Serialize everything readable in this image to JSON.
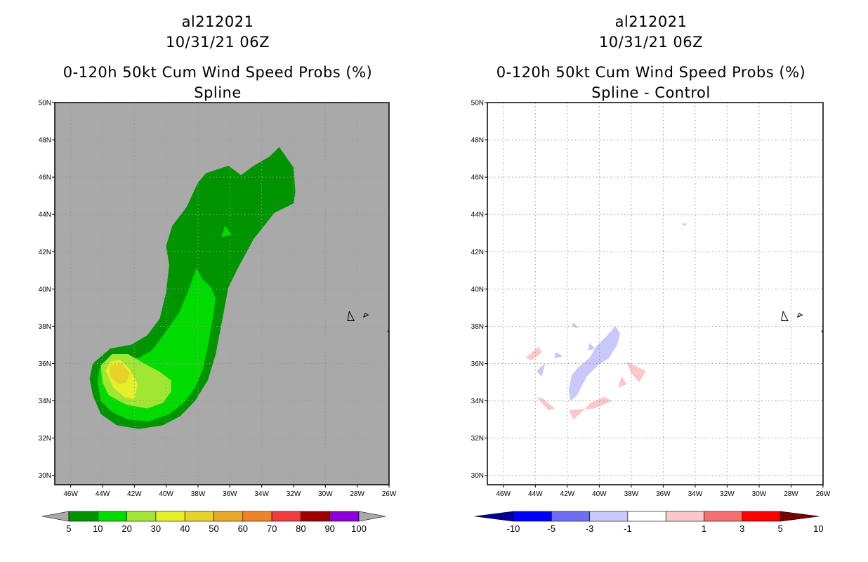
{
  "chart_data": [
    {
      "type": "heatmap",
      "storm": "al212021",
      "date": "10/31/21 06Z",
      "title": "0-120h 50kt Cum Wind Speed Probs (%)",
      "subtitle": "Spline",
      "xlim": [
        -47,
        -26
      ],
      "ylim": [
        29.5,
        50
      ],
      "x_ticks": [
        -46,
        -44,
        -42,
        -40,
        -38,
        -36,
        -34,
        -32,
        -30,
        -28,
        -26
      ],
      "x_tick_labels": [
        "46W",
        "44W",
        "42W",
        "40W",
        "38W",
        "36W",
        "34W",
        "32W",
        "30W",
        "28W",
        "26W"
      ],
      "y_ticks": [
        30,
        32,
        34,
        36,
        38,
        40,
        42,
        44,
        46,
        48,
        50
      ],
      "y_tick_labels": [
        "30N",
        "32N",
        "34N",
        "36N",
        "38N",
        "40N",
        "42N",
        "44N",
        "46N",
        "48N",
        "50N"
      ],
      "background": "#a9a9a9",
      "grid": true,
      "colorbar": {
        "labels": [
          "5",
          "10",
          "20",
          "30",
          "40",
          "50",
          "60",
          "70",
          "80",
          "90",
          "100"
        ],
        "colors": [
          "#009400",
          "#00dc00",
          "#a0e632",
          "#e6f028",
          "#e6d228",
          "#e6aa28",
          "#f08228",
          "#f03c3c",
          "#a00000",
          "#8c00dc"
        ],
        "end_color": "#a9a9a9"
      },
      "contours": [
        {
          "level": 5,
          "color": "#009400",
          "polygon": [
            [
              -32.0,
              46.5
            ],
            [
              -31.9,
              45.2
            ],
            [
              -32.0,
              44.6
            ],
            [
              -33.2,
              44.1
            ],
            [
              -34.5,
              42.7
            ],
            [
              -35.4,
              41.3
            ],
            [
              -36.1,
              40.1
            ],
            [
              -36.5,
              38.3
            ],
            [
              -36.9,
              36.5
            ],
            [
              -37.4,
              35.1
            ],
            [
              -38.2,
              34.0
            ],
            [
              -39.1,
              33.2
            ],
            [
              -40.2,
              32.7
            ],
            [
              -41.7,
              32.5
            ],
            [
              -43.1,
              32.7
            ],
            [
              -44.1,
              33.3
            ],
            [
              -44.6,
              34.3
            ],
            [
              -44.8,
              35.2
            ],
            [
              -44.6,
              36.0
            ],
            [
              -43.5,
              36.8
            ],
            [
              -42.2,
              37.0
            ],
            [
              -41.2,
              37.5
            ],
            [
              -40.4,
              38.4
            ],
            [
              -40.0,
              39.8
            ],
            [
              -39.8,
              41.3
            ],
            [
              -40.0,
              42.3
            ],
            [
              -39.6,
              43.4
            ],
            [
              -38.7,
              44.4
            ],
            [
              -38.0,
              45.7
            ],
            [
              -37.5,
              46.2
            ],
            [
              -36.1,
              46.6
            ],
            [
              -35.3,
              46.1
            ],
            [
              -34.5,
              46.6
            ],
            [
              -33.5,
              47.1
            ],
            [
              -32.9,
              47.6
            ],
            [
              -32.0,
              46.5
            ]
          ]
        },
        {
          "level": 10,
          "color": "#00dc00",
          "polygon": [
            [
              -38.1,
              41.1
            ],
            [
              -37.7,
              40.5
            ],
            [
              -37.2,
              40.1
            ],
            [
              -36.9,
              39.5
            ],
            [
              -37.1,
              38.3
            ],
            [
              -37.4,
              36.9
            ],
            [
              -37.7,
              35.7
            ],
            [
              -38.2,
              34.7
            ],
            [
              -38.9,
              33.9
            ],
            [
              -39.8,
              33.3
            ],
            [
              -41.1,
              32.9
            ],
            [
              -42.4,
              33.0
            ],
            [
              -43.4,
              33.4
            ],
            [
              -44.1,
              34.0
            ],
            [
              -44.3,
              35.0
            ],
            [
              -44.2,
              35.7
            ],
            [
              -43.6,
              36.2
            ],
            [
              -42.7,
              36.3
            ],
            [
              -41.7,
              36.3
            ],
            [
              -40.9,
              36.7
            ],
            [
              -40.1,
              37.6
            ],
            [
              -39.2,
              38.7
            ],
            [
              -38.6,
              39.9
            ],
            [
              -38.1,
              41.1
            ]
          ]
        },
        {
          "level": 10,
          "color": "#00dc00",
          "polygon": [
            [
              -36.3,
              43.4
            ],
            [
              -35.9,
              42.9
            ],
            [
              -36.5,
              42.8
            ],
            [
              -36.3,
              43.4
            ]
          ]
        },
        {
          "level": 20,
          "color": "#a0e632",
          "polygon": [
            [
              -39.7,
              35.1
            ],
            [
              -40.5,
              35.6
            ],
            [
              -41.4,
              36.0
            ],
            [
              -42.4,
              36.5
            ],
            [
              -43.4,
              36.5
            ],
            [
              -44.1,
              35.9
            ],
            [
              -44.0,
              35.0
            ],
            [
              -43.6,
              34.3
            ],
            [
              -42.5,
              33.8
            ],
            [
              -41.2,
              33.6
            ],
            [
              -40.2,
              33.9
            ],
            [
              -39.7,
              34.5
            ],
            [
              -39.7,
              35.1
            ]
          ]
        },
        {
          "level": 30,
          "color": "#e6f028",
          "polygon": [
            [
              -41.8,
              34.9
            ],
            [
              -42.3,
              35.7
            ],
            [
              -42.9,
              36.2
            ],
            [
              -43.5,
              36.1
            ],
            [
              -43.8,
              35.6
            ],
            [
              -43.3,
              34.7
            ],
            [
              -42.6,
              34.2
            ],
            [
              -42.0,
              34.1
            ],
            [
              -41.8,
              34.9
            ]
          ]
        },
        {
          "level": 40,
          "color": "#e6d228",
          "polygon": [
            [
              -42.3,
              35.5
            ],
            [
              -42.8,
              36.0
            ],
            [
              -43.5,
              35.9
            ],
            [
              -43.5,
              35.3
            ],
            [
              -43.0,
              34.9
            ],
            [
              -42.5,
              35.0
            ],
            [
              -42.3,
              35.5
            ]
          ]
        }
      ],
      "coast": [
        [
          [
            -28.5,
            38.8
          ],
          [
            -28.6,
            38.3
          ],
          [
            -28.2,
            38.3
          ],
          [
            -28.5,
            38.8
          ]
        ],
        [
          [
            -27.5,
            38.7
          ],
          [
            -27.6,
            38.5
          ],
          [
            -27.3,
            38.6
          ],
          [
            -27.5,
            38.7
          ]
        ],
        [
          [
            -25.9,
            37.9
          ],
          [
            -26.1,
            37.7
          ],
          [
            -25.9,
            37.8
          ]
        ]
      ]
    },
    {
      "type": "heatmap",
      "storm": "al212021",
      "date": "10/31/21 06Z",
      "title": "0-120h 50kt Cum Wind Speed Probs (%)",
      "subtitle": "Spline - Control",
      "xlim": [
        -47,
        -26
      ],
      "ylim": [
        29.5,
        50
      ],
      "x_ticks": [
        -46,
        -44,
        -42,
        -40,
        -38,
        -36,
        -34,
        -32,
        -30,
        -28,
        -26
      ],
      "x_tick_labels": [
        "46W",
        "44W",
        "42W",
        "40W",
        "38W",
        "36W",
        "34W",
        "32W",
        "30W",
        "28W",
        "26W"
      ],
      "y_ticks": [
        30,
        32,
        34,
        36,
        38,
        40,
        42,
        44,
        46,
        48,
        50
      ],
      "y_tick_labels": [
        "30N",
        "32N",
        "34N",
        "36N",
        "38N",
        "40N",
        "42N",
        "44N",
        "46N",
        "48N",
        "50N"
      ],
      "background": "#ffffff",
      "grid": true,
      "colorbar": {
        "labels": [
          "-10",
          "-5",
          "-3",
          "-1",
          "1",
          "3",
          "5",
          "10"
        ],
        "colors": [
          "#0000ff",
          "#6e6ef5",
          "#c8c8fa",
          "#ffffff",
          "#fac8c8",
          "#f56e6e",
          "#ff0000"
        ],
        "start_color": "#000096",
        "end_color": "#780000"
      },
      "contours": [
        {
          "level": -3,
          "color": "#c8c8fa",
          "polygon": [
            [
              -38.7,
              37.6
            ],
            [
              -38.9,
              37.0
            ],
            [
              -39.4,
              36.3
            ],
            [
              -40.1,
              35.9
            ],
            [
              -40.8,
              35.3
            ],
            [
              -41.4,
              34.3
            ],
            [
              -41.8,
              34.0
            ],
            [
              -41.9,
              34.6
            ],
            [
              -41.7,
              35.4
            ],
            [
              -41.3,
              35.8
            ],
            [
              -40.6,
              36.3
            ],
            [
              -40.2,
              36.9
            ],
            [
              -39.5,
              37.5
            ],
            [
              -39.0,
              38.0
            ],
            [
              -38.7,
              37.6
            ]
          ]
        },
        {
          "level": -3,
          "color": "#c8c8fa",
          "polygon": [
            [
              -40.6,
              37.1
            ],
            [
              -40.3,
              36.8
            ],
            [
              -40.7,
              36.7
            ],
            [
              -40.6,
              37.1
            ]
          ]
        },
        {
          "level": -3,
          "color": "#c8c8fa",
          "polygon": [
            [
              -42.7,
              36.6
            ],
            [
              -42.3,
              36.4
            ],
            [
              -42.8,
              36.3
            ],
            [
              -42.7,
              36.6
            ]
          ]
        },
        {
          "level": -3,
          "color": "#c8c8fa",
          "polygon": [
            [
              -43.4,
              36.0
            ],
            [
              -43.6,
              35.3
            ],
            [
              -43.9,
              35.6
            ],
            [
              -43.4,
              36.0
            ]
          ]
        },
        {
          "level": -3,
          "color": "#c8c8fa",
          "polygon": [
            [
              -41.6,
              38.2
            ],
            [
              -41.3,
              37.9
            ],
            [
              -41.7,
              38.0
            ],
            [
              -41.6,
              38.2
            ]
          ]
        },
        {
          "level": -3,
          "color": "#c8c8fa",
          "polygon": [
            [
              -34.8,
              43.5
            ],
            [
              -34.5,
              43.5
            ],
            [
              -34.7,
              43.4
            ],
            [
              -34.8,
              43.5
            ]
          ]
        },
        {
          "level": 1,
          "color": "#fac8c8",
          "polygon": [
            [
              -44.6,
              36.3
            ],
            [
              -43.8,
              36.9
            ],
            [
              -43.6,
              36.6
            ],
            [
              -44.2,
              36.2
            ],
            [
              -44.6,
              36.3
            ]
          ]
        },
        {
          "level": 1,
          "color": "#fac8c8",
          "polygon": [
            [
              -38.3,
              36.1
            ],
            [
              -37.1,
              35.6
            ],
            [
              -37.5,
              35.0
            ],
            [
              -38.0,
              35.5
            ],
            [
              -38.3,
              36.1
            ]
          ]
        },
        {
          "level": 1,
          "color": "#fac8c8",
          "polygon": [
            [
              -38.6,
              35.3
            ],
            [
              -38.3,
              34.9
            ],
            [
              -38.8,
              34.7
            ],
            [
              -38.6,
              35.3
            ]
          ]
        },
        {
          "level": 1,
          "color": "#fac8c8",
          "polygon": [
            [
              -43.9,
              34.2
            ],
            [
              -43.2,
              33.5
            ],
            [
              -42.8,
              33.6
            ],
            [
              -43.5,
              34.1
            ],
            [
              -43.9,
              34.2
            ]
          ]
        },
        {
          "level": 1,
          "color": "#fac8c8",
          "polygon": [
            [
              -41.9,
              33.5
            ],
            [
              -40.3,
              33.6
            ],
            [
              -39.2,
              34.0
            ],
            [
              -39.7,
              34.2
            ],
            [
              -40.5,
              33.9
            ],
            [
              -41.6,
              33.0
            ],
            [
              -41.9,
              33.5
            ]
          ]
        }
      ],
      "coast": [
        [
          [
            -28.5,
            38.8
          ],
          [
            -28.6,
            38.3
          ],
          [
            -28.2,
            38.3
          ],
          [
            -28.5,
            38.8
          ]
        ],
        [
          [
            -27.5,
            38.7
          ],
          [
            -27.6,
            38.5
          ],
          [
            -27.3,
            38.6
          ],
          [
            -27.5,
            38.7
          ]
        ],
        [
          [
            -25.9,
            37.9
          ],
          [
            -26.1,
            37.7
          ],
          [
            -25.9,
            37.8
          ]
        ]
      ]
    }
  ]
}
